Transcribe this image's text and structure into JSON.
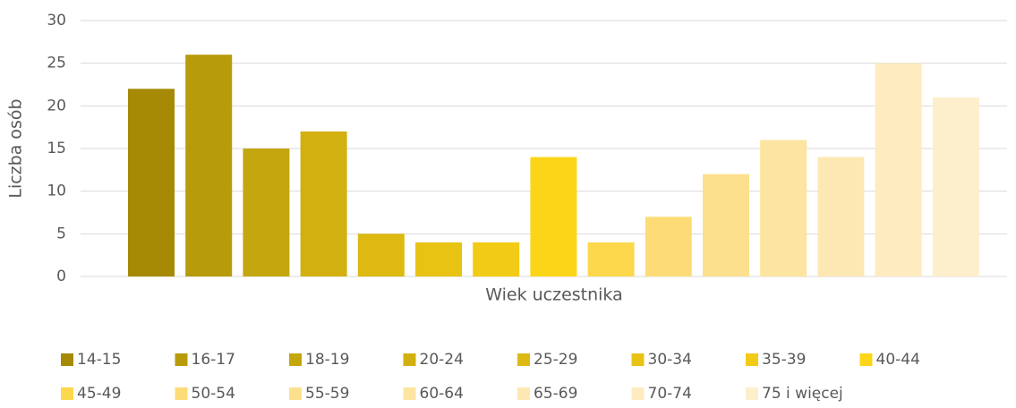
{
  "chart_data": {
    "type": "bar",
    "x_label": "Wiek uczestnika",
    "y_label": "Liczba osób",
    "categories": [
      null
    ],
    "series": [
      {
        "name": "14-15",
        "color": "#a68a06",
        "values": [
          22
        ]
      },
      {
        "name": "16-17",
        "color": "#b89b0a",
        "values": [
          26
        ]
      },
      {
        "name": "18-19",
        "color": "#c4a60e",
        "values": [
          15
        ]
      },
      {
        "name": "20-24",
        "color": "#d2b010",
        "values": [
          17
        ]
      },
      {
        "name": "25-29",
        "color": "#ddb912",
        "values": [
          5
        ]
      },
      {
        "name": "30-34",
        "color": "#e8c314",
        "values": [
          4
        ]
      },
      {
        "name": "35-39",
        "color": "#f2cb16",
        "values": [
          4
        ]
      },
      {
        "name": "40-44",
        "color": "#fdd518",
        "values": [
          14
        ]
      },
      {
        "name": "45-49",
        "color": "#fdd84c",
        "values": [
          4
        ]
      },
      {
        "name": "50-54",
        "color": "#fddc78",
        "values": [
          7
        ]
      },
      {
        "name": "55-59",
        "color": "#fde08e",
        "values": [
          12
        ]
      },
      {
        "name": "60-64",
        "color": "#fde4a0",
        "values": [
          16
        ]
      },
      {
        "name": "65-69",
        "color": "#fde8b4",
        "values": [
          14
        ]
      },
      {
        "name": "70-74",
        "color": "#feecc0",
        "values": [
          25
        ]
      },
      {
        "name": "75 i więcej",
        "color": "#fdefcc",
        "values": [
          21
        ]
      }
    ],
    "ylim": [
      0,
      30
    ],
    "yticks": [
      0,
      5,
      10,
      15,
      20,
      25,
      30
    ],
    "grid": true,
    "legend": "bottom"
  }
}
